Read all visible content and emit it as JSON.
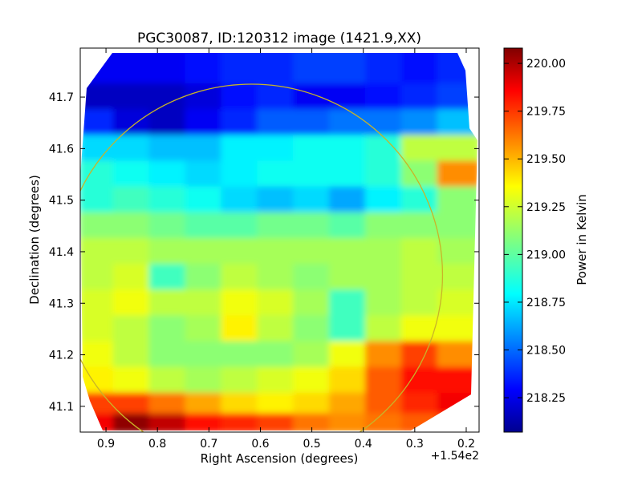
{
  "chart_data": {
    "type": "heatmap",
    "title": "PGC30087, ID:120312 image (1421.9,XX)",
    "xlabel": "Right Ascension (degrees)",
    "ylabel": "Declination (degrees)",
    "x_offset_label": "+1.54e2",
    "xlim": [
      0.95,
      0.175
    ],
    "ylim": [
      41.05,
      41.795
    ],
    "x_ticks": [
      0.9,
      0.8,
      0.7,
      0.6,
      0.5,
      0.4,
      0.3,
      0.2
    ],
    "x_tick_labels": [
      "0.9",
      "0.8",
      "0.7",
      "0.6",
      "0.5",
      "0.4",
      "0.3",
      "0.2"
    ],
    "y_ticks": [
      41.1,
      41.2,
      41.3,
      41.4,
      41.5,
      41.6,
      41.7
    ],
    "y_tick_labels": [
      "41.1",
      "41.2",
      "41.3",
      "41.4",
      "41.5",
      "41.6",
      "41.7"
    ],
    "colorbar": {
      "label": "Power in Kelvin",
      "min": 218.07,
      "max": 220.08,
      "ticks": [
        218.25,
        218.5,
        218.75,
        219.0,
        219.25,
        219.5,
        219.75,
        220.0
      ],
      "tick_labels": [
        "218.25",
        "218.50",
        "218.75",
        "219.00",
        "219.25",
        "219.50",
        "219.75",
        "220.00"
      ],
      "colormap": "jet"
    },
    "grid": false,
    "beam_circle": {
      "center_ra": 0.617,
      "center_dec": 41.355,
      "radius_deg": 0.37,
      "color": "#c8b428"
    },
    "values_dec_descending": [
      41.75,
      41.7,
      41.65,
      41.6,
      41.55,
      41.5,
      41.45,
      41.4,
      41.35,
      41.3,
      41.25,
      41.2,
      41.15,
      41.1,
      41.07
    ],
    "values_ra_columns": [
      0.92,
      0.85,
      0.78,
      0.71,
      0.64,
      0.57,
      0.5,
      0.43,
      0.36,
      0.29,
      0.22
    ],
    "values": [
      [
        218.3,
        218.3,
        218.3,
        218.35,
        218.4,
        218.4,
        218.45,
        218.45,
        218.4,
        218.35,
        218.4
      ],
      [
        218.2,
        218.2,
        218.2,
        218.25,
        218.35,
        218.4,
        218.3,
        218.3,
        218.35,
        218.4,
        218.45
      ],
      [
        218.4,
        218.25,
        218.2,
        218.3,
        218.4,
        218.5,
        218.5,
        218.55,
        218.55,
        218.6,
        218.7
      ],
      [
        218.75,
        218.75,
        218.7,
        218.7,
        218.8,
        218.8,
        218.85,
        218.85,
        218.9,
        219.2,
        219.2
      ],
      [
        218.9,
        218.85,
        218.8,
        218.75,
        218.8,
        218.85,
        218.85,
        218.85,
        218.9,
        219.1,
        219.55
      ],
      [
        218.9,
        218.95,
        218.9,
        218.85,
        218.75,
        218.7,
        218.75,
        218.65,
        218.8,
        218.9,
        219.1
      ],
      [
        219.1,
        219.1,
        219.05,
        219.0,
        219.0,
        219.05,
        219.05,
        219.0,
        219.1,
        219.1,
        219.1
      ],
      [
        219.2,
        219.2,
        219.15,
        219.15,
        219.15,
        219.15,
        219.15,
        219.15,
        219.15,
        219.2,
        219.15
      ],
      [
        219.2,
        219.25,
        218.95,
        219.1,
        219.2,
        219.15,
        219.1,
        219.15,
        219.15,
        219.2,
        219.2
      ],
      [
        219.25,
        219.3,
        219.2,
        219.2,
        219.3,
        219.25,
        219.15,
        218.95,
        219.15,
        219.2,
        219.25
      ],
      [
        219.25,
        219.2,
        219.1,
        219.15,
        219.35,
        219.2,
        219.1,
        218.95,
        219.2,
        219.3,
        219.3
      ],
      [
        219.3,
        219.2,
        219.1,
        219.1,
        219.1,
        219.1,
        219.15,
        219.3,
        219.55,
        219.7,
        219.55
      ],
      [
        219.35,
        219.3,
        219.2,
        219.15,
        219.2,
        219.25,
        219.3,
        219.4,
        219.65,
        219.8,
        219.8
      ],
      [
        219.7,
        219.7,
        219.6,
        219.5,
        219.4,
        219.35,
        219.4,
        219.5,
        219.65,
        219.75,
        219.85
      ],
      [
        219.85,
        220.05,
        219.95,
        219.8,
        219.75,
        219.7,
        219.6,
        219.55,
        219.6,
        219.65,
        219.7
      ]
    ]
  }
}
